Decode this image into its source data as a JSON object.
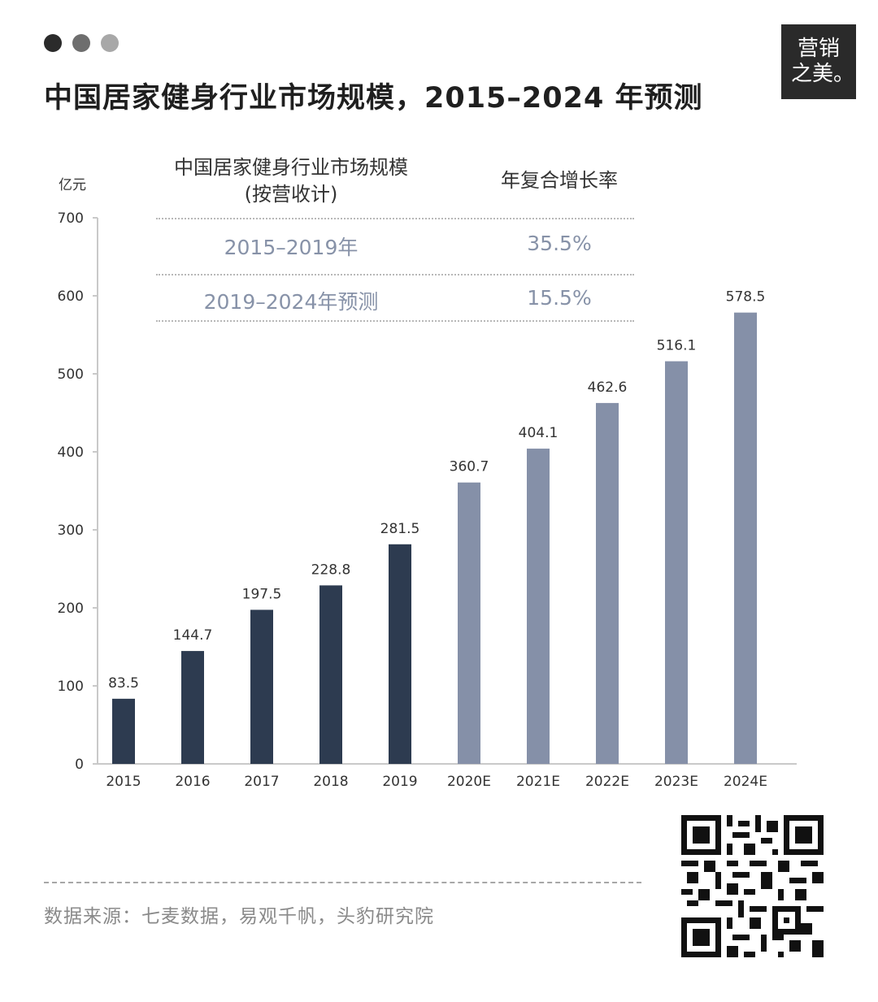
{
  "header": {
    "title": "中国居家健身行业市场规模，2015–2024 年预测",
    "window_dots": [
      "#2b2b2b",
      "#6e6e6e",
      "#a8a8a8"
    ]
  },
  "brand": {
    "line1": "营销",
    "line2": "之美。"
  },
  "table": {
    "col1_header_line1": "中国居家健身行业市场规模",
    "col1_header_line2": "(按营收计)",
    "col2_header": "年复合增长率",
    "rows": [
      {
        "period": "2015–2019年",
        "cagr": "35.5%"
      },
      {
        "period": "2019–2024年预测",
        "cagr": "15.5%"
      }
    ]
  },
  "chart_data": {
    "type": "bar",
    "unit_label": "亿元",
    "categories": [
      "2015",
      "2016",
      "2017",
      "2018",
      "2019",
      "2020E",
      "2021E",
      "2022E",
      "2023E",
      "2024E"
    ],
    "values": [
      83.5,
      144.7,
      197.5,
      228.8,
      281.5,
      360.7,
      404.1,
      462.6,
      516.1,
      578.5
    ],
    "value_labels": [
      "83.5",
      "144.7",
      "197.5",
      "228.8",
      "281.5",
      "360.7",
      "404.1",
      "462.6",
      "516.1",
      "578.5"
    ],
    "ylim": [
      0,
      700
    ],
    "yticks": [
      "0",
      "100",
      "200",
      "300",
      "400",
      "500",
      "600",
      "700"
    ],
    "colors": {
      "actual": "#2d3b50",
      "forecast": "#8590a8"
    },
    "actual_count": 5
  },
  "footer": {
    "source": "数据来源：七麦数据，易观千帆，头豹研究院",
    "qr_icon": "qr-code-icon"
  }
}
